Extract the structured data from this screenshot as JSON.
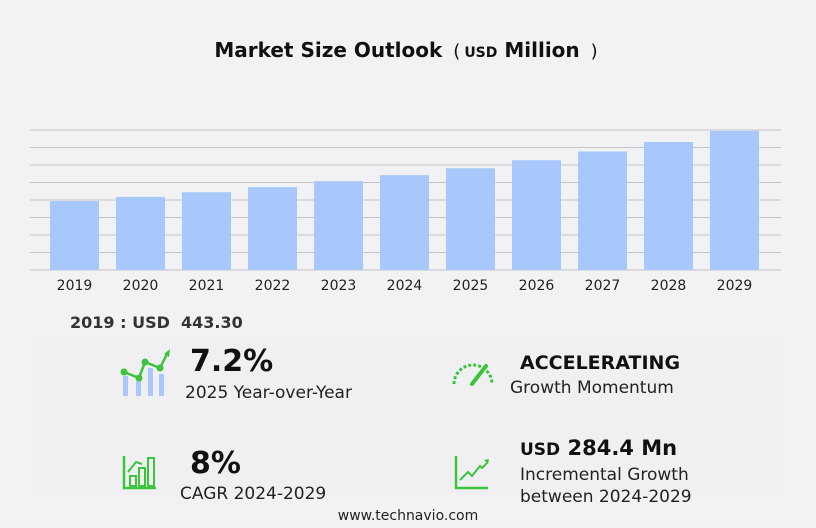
{
  "title": {
    "main": "Market Size Outlook",
    "open": "(",
    "unit": "USD",
    "unit_label": "Million",
    "close": ")"
  },
  "chart_data": {
    "type": "bar",
    "title": "Market Size Outlook (USD Million)",
    "categories": [
      "2019",
      "2020",
      "2021",
      "2022",
      "2023",
      "2024",
      "2025",
      "2026",
      "2027",
      "2028",
      "2029"
    ],
    "values": [
      443.3,
      470,
      500,
      533,
      571,
      610,
      654,
      706,
      762,
      823,
      894
    ],
    "ylim": [
      0,
      900
    ],
    "grid": true,
    "bar_color": "#a8c8fc"
  },
  "base_year": {
    "label": "2019 : USD",
    "value": "443.30"
  },
  "stats": {
    "yoy": {
      "value": "7.2%",
      "label": "2025 Year-over-Year"
    },
    "momentum": {
      "value": "ACCELERATING",
      "label": "Growth Momentum"
    },
    "cagr": {
      "value": "8%",
      "label": "CAGR 2024-2029"
    },
    "incremental": {
      "unit": "USD",
      "value": "284.4 Mn",
      "label1": "Incremental Growth",
      "label2": "between 2024-2029"
    }
  },
  "colors": {
    "accent_green": "#3cc43c",
    "bar": "#a8c8fc"
  },
  "footer": "www.technavio.com"
}
